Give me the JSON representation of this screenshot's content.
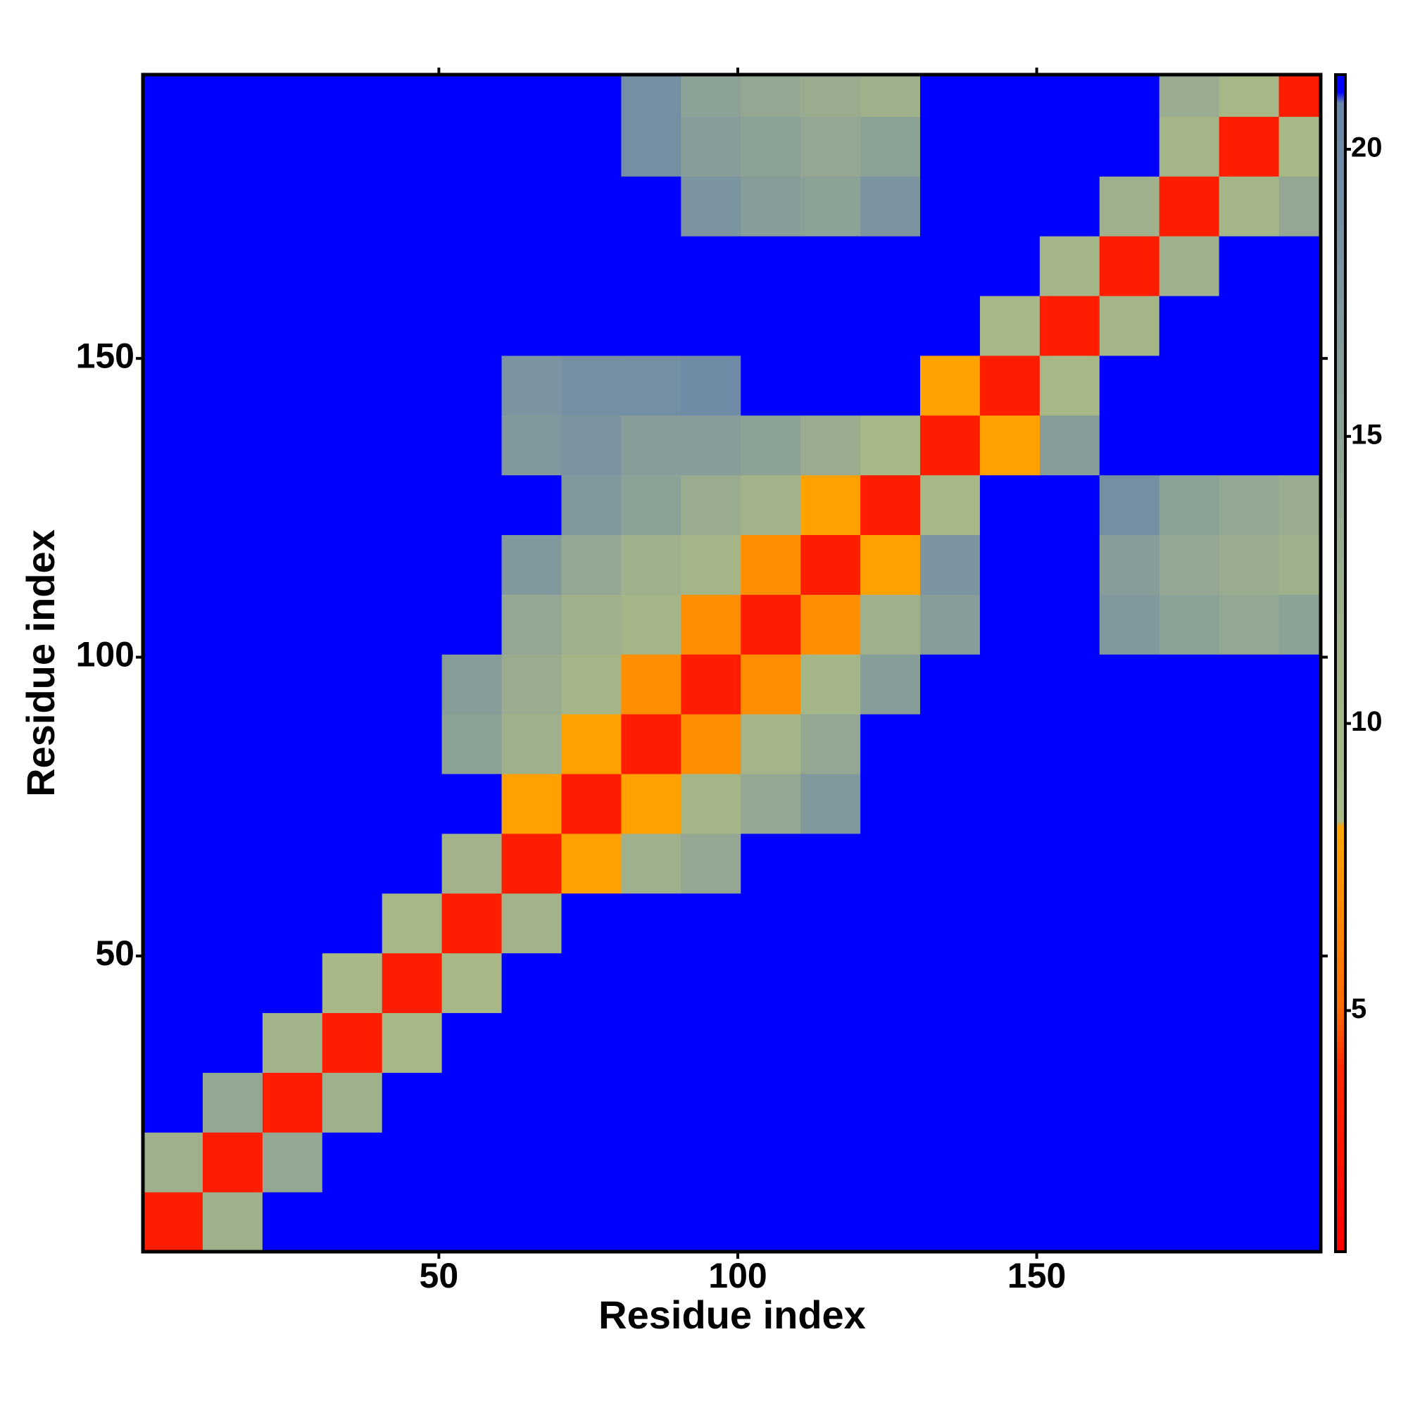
{
  "chart_data": {
    "type": "heatmap",
    "x_label": "Residue index",
    "y_label": "Residue index",
    "xlim": [
      0.5,
      197.5
    ],
    "ylim": [
      0.5,
      197.5
    ],
    "xticks": [
      50,
      100,
      150
    ],
    "yticks": [
      50,
      100,
      150
    ],
    "xbins": [
      0.5,
      10.5,
      20.5,
      30.5,
      40.5,
      50.5,
      60.5,
      70.5,
      80.5,
      90.5,
      100.5,
      110.5,
      120.5,
      130.5,
      140.5,
      150.5,
      160.5,
      170.5,
      180.5,
      190.5,
      197.5
    ],
    "ybins": [
      0.5,
      10.5,
      20.5,
      30.5,
      40.5,
      50.5,
      60.5,
      70.5,
      80.5,
      90.5,
      100.5,
      110.5,
      120.5,
      130.5,
      140.5,
      150.5,
      160.5,
      170.5,
      180.5,
      190.5,
      197.5
    ],
    "z": [
      [
        3,
        12,
        21,
        21,
        21,
        21,
        21,
        21,
        21,
        21,
        21,
        21,
        21,
        21,
        21,
        21,
        21,
        21,
        21,
        21
      ],
      [
        12,
        3,
        14,
        21,
        21,
        21,
        21,
        21,
        21,
        21,
        21,
        21,
        21,
        21,
        21,
        21,
        21,
        21,
        21,
        21
      ],
      [
        21,
        14,
        3,
        12,
        21,
        21,
        21,
        21,
        21,
        21,
        21,
        21,
        21,
        21,
        21,
        21,
        21,
        21,
        21,
        21
      ],
      [
        21,
        21,
        11,
        3,
        9,
        21,
        21,
        21,
        21,
        21,
        21,
        21,
        21,
        21,
        21,
        21,
        21,
        21,
        21,
        21
      ],
      [
        21,
        21,
        21,
        9,
        3,
        9,
        21,
        21,
        21,
        21,
        21,
        21,
        21,
        21,
        21,
        21,
        21,
        21,
        21,
        21
      ],
      [
        21,
        21,
        21,
        21,
        9,
        3,
        11,
        21,
        21,
        21,
        21,
        21,
        21,
        21,
        21,
        21,
        21,
        21,
        21,
        21
      ],
      [
        21,
        21,
        21,
        21,
        21,
        11,
        3,
        8,
        12,
        14,
        21,
        21,
        21,
        21,
        21,
        21,
        21,
        21,
        21,
        21
      ],
      [
        21,
        21,
        21,
        21,
        21,
        21,
        8,
        3,
        8,
        10,
        14,
        17,
        21,
        21,
        21,
        21,
        21,
        21,
        21,
        21
      ],
      [
        21,
        21,
        21,
        21,
        21,
        15,
        12,
        8,
        3,
        7,
        10,
        14,
        21,
        21,
        21,
        21,
        21,
        21,
        21,
        21
      ],
      [
        21,
        21,
        21,
        21,
        21,
        16,
        13,
        10,
        7,
        3,
        7,
        10,
        16,
        21,
        21,
        21,
        21,
        21,
        21,
        21
      ],
      [
        21,
        21,
        21,
        21,
        21,
        21,
        14,
        12,
        10,
        7,
        3,
        7,
        12,
        16,
        21,
        21,
        17,
        15,
        14,
        15
      ],
      [
        21,
        21,
        21,
        21,
        21,
        21,
        17,
        14,
        12,
        10,
        7,
        3,
        8,
        18,
        21,
        21,
        16,
        14,
        13,
        12
      ],
      [
        21,
        21,
        21,
        21,
        21,
        21,
        21,
        17,
        15,
        13,
        11,
        8,
        3,
        9,
        21,
        21,
        19,
        15,
        14,
        13
      ],
      [
        21,
        21,
        21,
        21,
        21,
        21,
        17,
        18,
        16,
        16,
        15,
        13,
        9,
        3,
        8,
        16,
        21,
        21,
        21,
        21
      ],
      [
        21,
        21,
        21,
        21,
        21,
        21,
        18,
        19,
        19,
        20,
        21,
        21,
        21,
        8,
        3,
        9,
        21,
        21,
        21,
        21
      ],
      [
        21,
        21,
        21,
        21,
        21,
        21,
        21,
        21,
        21,
        21,
        21,
        21,
        21,
        21,
        9,
        3,
        10,
        21,
        21,
        21
      ],
      [
        21,
        21,
        21,
        21,
        21,
        21,
        21,
        21,
        21,
        21,
        21,
        21,
        21,
        21,
        21,
        10,
        3,
        12,
        21,
        21
      ],
      [
        21,
        21,
        21,
        21,
        21,
        21,
        21,
        21,
        21,
        18,
        16,
        15,
        18,
        21,
        21,
        21,
        12,
        3,
        10,
        14
      ],
      [
        21,
        21,
        21,
        21,
        21,
        21,
        21,
        21,
        19,
        16,
        15,
        14,
        15,
        21,
        21,
        21,
        21,
        10,
        3,
        9
      ],
      [
        21,
        21,
        21,
        21,
        21,
        21,
        21,
        21,
        19,
        15,
        14,
        13,
        12,
        21,
        21,
        21,
        21,
        13,
        9,
        3
      ]
    ],
    "zlim": [
      0.8,
      21.3
    ],
    "zticks": [
      5,
      10,
      15,
      20
    ],
    "colorscale": [
      [
        0.8,
        "#ff0000"
      ],
      [
        4,
        "#ff2a00"
      ],
      [
        5,
        "#ff6a00"
      ],
      [
        8.2,
        "#ffa500"
      ],
      [
        8.3,
        "#a9b985"
      ],
      [
        12,
        "#9fb18c"
      ],
      [
        20.8,
        "#6a86a8"
      ],
      [
        21,
        "#0000ff"
      ],
      [
        21.3,
        "#0000ff"
      ]
    ]
  }
}
